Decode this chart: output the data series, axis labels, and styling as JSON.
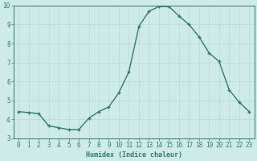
{
  "x": [
    0,
    1,
    2,
    3,
    4,
    5,
    6,
    7,
    8,
    9,
    10,
    11,
    12,
    13,
    14,
    15,
    16,
    17,
    18,
    19,
    20,
    21,
    22,
    23
  ],
  "y": [
    4.4,
    4.35,
    4.3,
    3.65,
    3.55,
    3.45,
    3.45,
    4.05,
    4.4,
    4.65,
    5.4,
    6.5,
    8.9,
    9.7,
    9.95,
    9.95,
    9.45,
    9.0,
    8.35,
    7.5,
    7.05,
    5.55,
    4.9,
    4.4
  ],
  "line_color": "#2e7d6e",
  "bg_color": "#ceeaea",
  "grid_color": "#b8d8d8",
  "xlabel": "Humidex (Indice chaleur)",
  "ylim": [
    3,
    10
  ],
  "xlim_min": -0.5,
  "xlim_max": 23.5,
  "yticks": [
    3,
    4,
    5,
    6,
    7,
    8,
    9,
    10
  ],
  "xticks": [
    0,
    1,
    2,
    3,
    4,
    5,
    6,
    7,
    8,
    9,
    10,
    11,
    12,
    13,
    14,
    15,
    16,
    17,
    18,
    19,
    20,
    21,
    22,
    23
  ],
  "xlabel_fontsize": 6.0,
  "tick_fontsize": 5.5,
  "marker_size": 3.0,
  "line_width": 1.0
}
